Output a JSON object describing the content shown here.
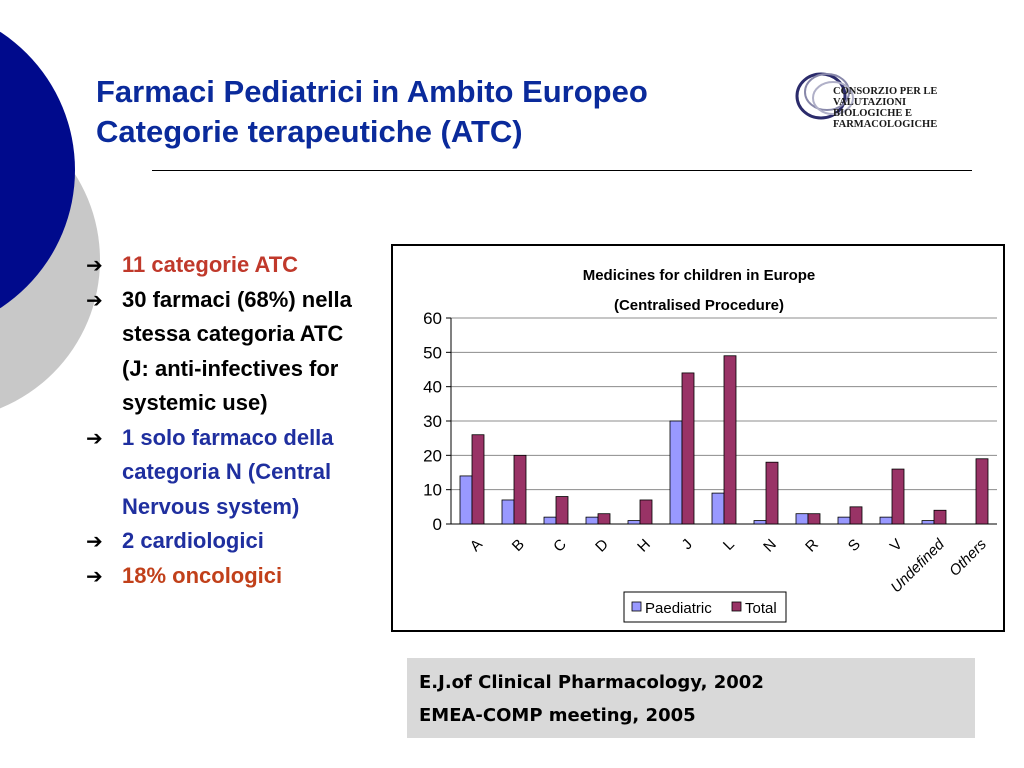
{
  "slide": {
    "title_line1": "Farmaci Pediatrici in Ambito Europeo",
    "title_line2": "Categorie terapeutiche (ATC)"
  },
  "logo": {
    "line1": "CONSORZIO PER LE",
    "line2": "VALUTAZIONI",
    "line3": "BIOLOGICHE E",
    "line4": "FARMACOLOGICHE"
  },
  "bullets": [
    {
      "text": "11 categorie ATC"
    },
    {
      "text": "30 farmaci (68%) nella stessa categoria ATC (J: anti-infectives for systemic use)"
    },
    {
      "text": "1 solo farmaco della categoria N (Central Nervous system)"
    },
    {
      "text": "2 cardiologici"
    },
    {
      "text": "18% oncologici"
    }
  ],
  "source": {
    "line1": "E.J.of Clinical Pharmacology, 2002",
    "line2": "EMEA-COMP meeting, 2005"
  },
  "chart_data": {
    "type": "bar",
    "title": "Medicines for children in Europe",
    "subtitle": "(Centralised Procedure)",
    "categories": [
      "A",
      "B",
      "C",
      "D",
      "H",
      "J",
      "L",
      "N",
      "R",
      "S",
      "V",
      "Undefined",
      "Others"
    ],
    "series": [
      {
        "name": "Paediatric",
        "color": "#9999ff",
        "values": [
          14,
          7,
          2,
          2,
          1,
          30,
          9,
          1,
          3,
          2,
          2,
          1,
          0
        ]
      },
      {
        "name": "Total",
        "color": "#993366",
        "values": [
          26,
          20,
          8,
          3,
          7,
          44,
          49,
          18,
          3,
          5,
          16,
          4,
          19
        ]
      }
    ],
    "yticks": [
      "0",
      "10",
      "20",
      "30",
      "40",
      "50",
      "60"
    ],
    "ylim": [
      0,
      60
    ],
    "grid": true,
    "legend_position": "bottom"
  }
}
